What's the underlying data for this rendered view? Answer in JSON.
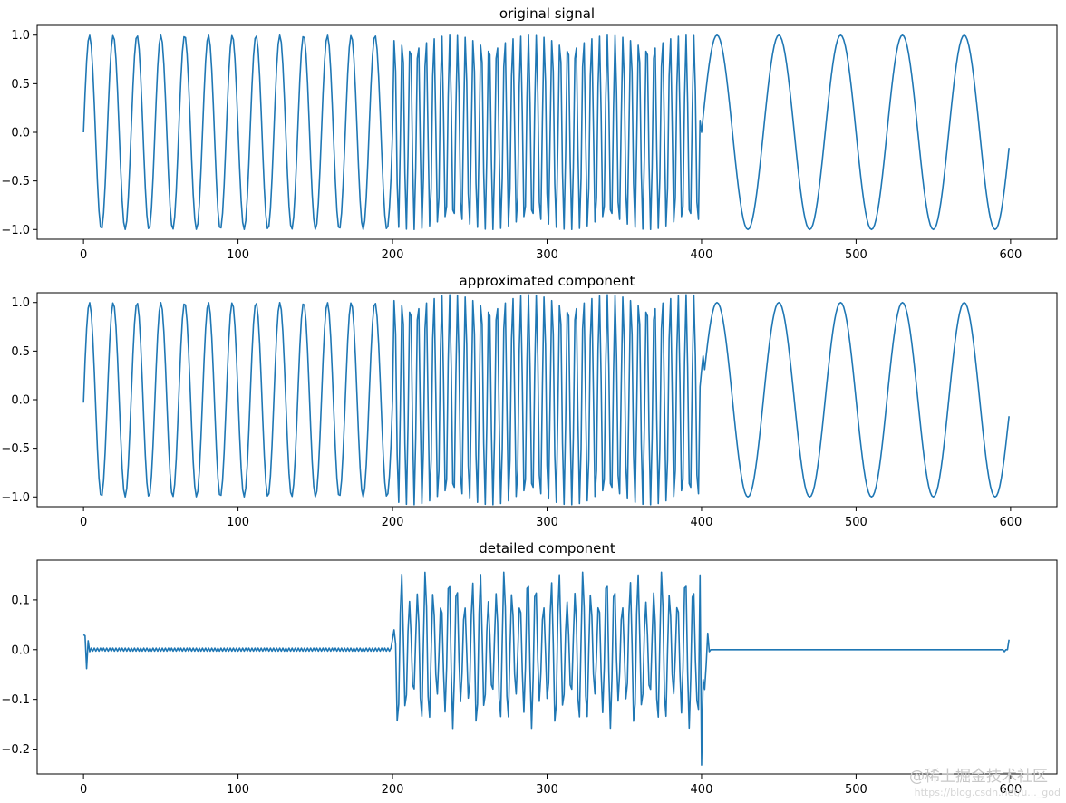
{
  "colors": {
    "line": "#1f77b4",
    "axes": "#000000",
    "background": "#ffffff",
    "watermark": "#c8c8c8"
  },
  "watermark": {
    "logo_text": "@稀土掘金技术社区",
    "url_text": "https://blog.csdn.net/u..._god"
  },
  "chart_data": [
    {
      "type": "line",
      "title": "original signal",
      "xlabel": "",
      "ylabel": "",
      "xlim": [
        -30,
        630
      ],
      "ylim": [
        -1.1,
        1.1
      ],
      "xticks": [
        0,
        100,
        200,
        300,
        400,
        500,
        600
      ],
      "xtick_labels": [
        "0",
        "100",
        "200",
        "300",
        "400",
        "500",
        "600"
      ],
      "yticks": [
        -1.0,
        -0.5,
        0.0,
        0.5,
        1.0
      ],
      "ytick_labels": [
        "−1.0",
        "−0.5",
        "0.0",
        "0.5",
        "1.0"
      ],
      "grid": false,
      "series": [
        {
          "color": "#1f77b4",
          "x_range": [
            0,
            599
          ],
          "n_points": 600,
          "segments": [
            {
              "x": [
                0,
                199
              ],
              "shape": "sine",
              "amplitude": 1.0,
              "period": 15.4
            },
            {
              "x": [
                200,
                399
              ],
              "shape": "sine",
              "amplitude": 1.0,
              "period": 5.1
            },
            {
              "x": [
                400,
                599
              ],
              "shape": "sine",
              "amplitude": 1.0,
              "period": 40
            }
          ],
          "end_value": -0.16
        }
      ]
    },
    {
      "type": "line",
      "title": "approximated component",
      "xlabel": "",
      "ylabel": "",
      "xlim": [
        -30,
        630
      ],
      "ylim": [
        -1.1,
        1.1
      ],
      "xticks": [
        0,
        100,
        200,
        300,
        400,
        500,
        600
      ],
      "xtick_labels": [
        "0",
        "100",
        "200",
        "300",
        "400",
        "500",
        "600"
      ],
      "yticks": [
        -1.0,
        -0.5,
        0.0,
        0.5,
        1.0
      ],
      "ytick_labels": [
        "−1.0",
        "−0.5",
        "0.0",
        "0.5",
        "1.0"
      ],
      "grid": false,
      "series": [
        {
          "color": "#1f77b4",
          "x_range": [
            0,
            599
          ],
          "n_points": 600,
          "segments": [
            {
              "x": [
                0,
                199
              ],
              "shape": "sine",
              "amplitude": 1.0,
              "period": 15.4
            },
            {
              "x": [
                200,
                399
              ],
              "shape": "sine",
              "amplitude": 1.08,
              "period": 5.1
            },
            {
              "x": [
                400,
                599
              ],
              "shape": "sine",
              "amplitude": 1.0,
              "period": 40
            }
          ],
          "start_value": -0.03,
          "end_value": -0.17
        }
      ]
    },
    {
      "type": "line",
      "title": "detailed component",
      "xlabel": "",
      "ylabel": "",
      "xlim": [
        -30,
        630
      ],
      "ylim": [
        -0.25,
        0.18
      ],
      "xticks": [
        0,
        100,
        200,
        300,
        400,
        500,
        600
      ],
      "xtick_labels": [
        "0",
        "100",
        "200",
        "300",
        "400",
        "500",
        "600"
      ],
      "yticks": [
        -0.2,
        -0.1,
        0.0,
        0.1
      ],
      "ytick_labels": [
        "−0.2",
        "−0.1",
        "0.0",
        "0.1"
      ],
      "grid": false,
      "series": [
        {
          "color": "#1f77b4",
          "x_range": [
            0,
            599
          ],
          "n_points": 600,
          "segments": [
            {
              "x": [
                0,
                199
              ],
              "shape": "small-oscillation",
              "amplitude": 0.003
            },
            {
              "x": [
                200,
                399
              ],
              "shape": "oscillation",
              "amplitude_min": 0.09,
              "amplitude_max": 0.16
            },
            {
              "x": [
                400,
                599
              ],
              "shape": "flat",
              "value": 0.0
            }
          ],
          "start_value": 0.03,
          "min_near_0": -0.038,
          "min_near_400": -0.232,
          "spike_near_404": 0.033,
          "end_value": 0.02
        }
      ]
    }
  ]
}
